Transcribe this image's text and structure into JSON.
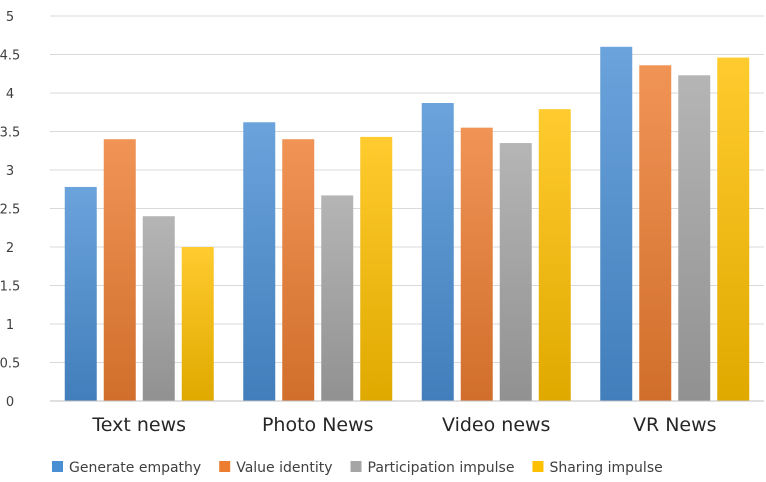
{
  "chart_data": {
    "type": "bar",
    "categories": [
      "Text news",
      "Photo News",
      "Video news",
      "VR News"
    ],
    "series": [
      {
        "name": "Generate empathy",
        "values": [
          2.78,
          3.62,
          3.87,
          4.6
        ],
        "color": "#4a8fd4"
      },
      {
        "name": "Value identity",
        "values": [
          3.4,
          3.4,
          3.55,
          4.36
        ],
        "color": "#ed7d31"
      },
      {
        "name": "Participation impulse",
        "values": [
          2.4,
          2.67,
          3.35,
          4.23
        ],
        "color": "#a5a5a5"
      },
      {
        "name": "Sharing impulse",
        "values": [
          2.0,
          3.43,
          3.79,
          4.46
        ],
        "color": "#ffc000"
      }
    ],
    "yticks": [
      "0",
      "0.5",
      "1",
      "1.5",
      "2",
      "2.5",
      "3",
      "3.5",
      "4",
      "4.5",
      "5"
    ],
    "ylim": [
      0,
      5
    ],
    "ystep": 0.5,
    "grid": true,
    "legend_position": "bottom"
  }
}
